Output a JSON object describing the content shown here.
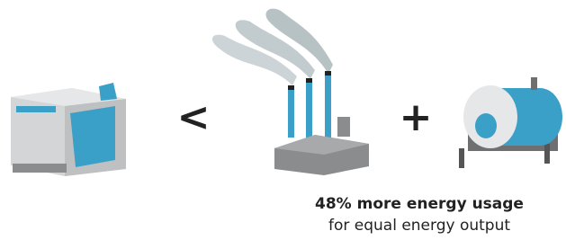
{
  "symbols": {
    "less_than": "<",
    "plus": "+"
  },
  "caption": {
    "headline": "48% more energy usage",
    "subline": "for equal energy output"
  }
}
